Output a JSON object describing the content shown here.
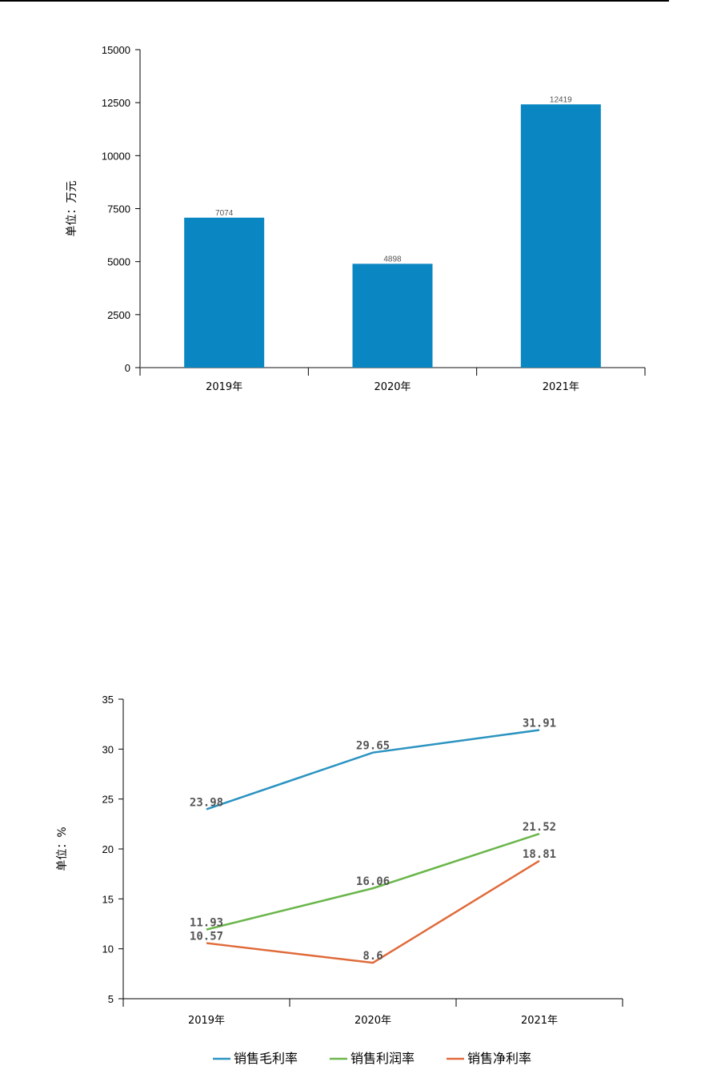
{
  "chart_data": [
    {
      "type": "bar",
      "categories": [
        "2019年",
        "2020年",
        "2021年"
      ],
      "values": [
        7074,
        4898,
        12419
      ],
      "data_labels": [
        "7074",
        "4898",
        "12419"
      ],
      "ylabel": "单位：万元",
      "ylim": [
        0,
        15000
      ],
      "yticks": [
        "0",
        "2500",
        "5000",
        "7500",
        "10000",
        "12500",
        "15000"
      ],
      "color": "#0a87c2",
      "grid": false,
      "legend": "none"
    },
    {
      "type": "line",
      "categories": [
        "2019年",
        "2020年",
        "2021年"
      ],
      "series": [
        {
          "name": "销售毛利率",
          "values": [
            23.98,
            29.65,
            31.91
          ],
          "labels": [
            "23.98",
            "29.65",
            "31.91"
          ],
          "color": "#2b93c1"
        },
        {
          "name": "销售利润率",
          "values": [
            11.93,
            16.06,
            21.52
          ],
          "labels": [
            "11.93",
            "16.06",
            "21.52"
          ],
          "color": "#6ab64b"
        },
        {
          "name": "销售净利率",
          "values": [
            10.57,
            8.6,
            18.81
          ],
          "labels": [
            "10.57",
            "8.6",
            "18.81"
          ],
          "color": "#e06a3a"
        }
      ],
      "ylabel": "单位：%",
      "ylim": [
        5,
        35
      ],
      "yticks": [
        "5",
        "10",
        "15",
        "20",
        "25",
        "30",
        "35"
      ],
      "grid": false,
      "legend": "bottom"
    }
  ]
}
